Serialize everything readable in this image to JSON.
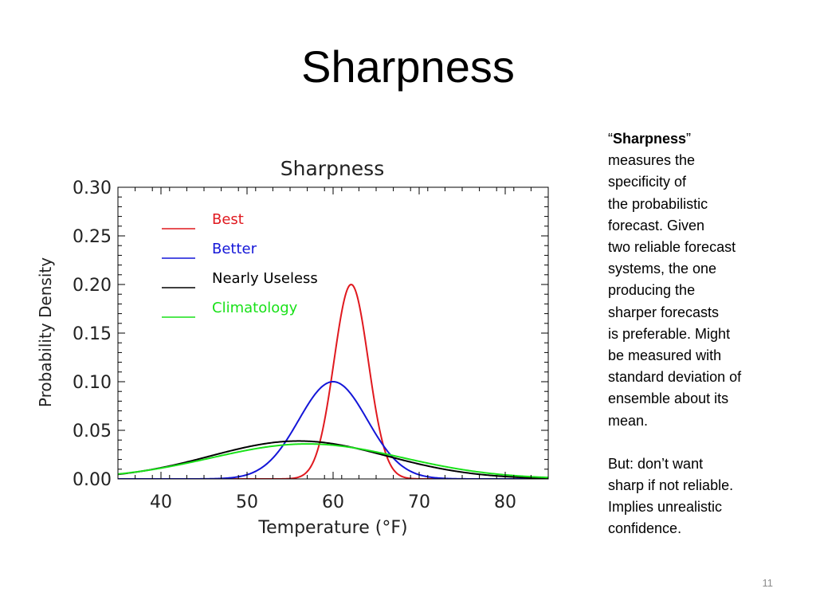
{
  "slide": {
    "title": "Sharpness",
    "number": "11"
  },
  "sidebar": {
    "para1_quote_open": "“",
    "para1_bold": "Sharpness",
    "para1_quote_close": "”",
    "para1_lines": [
      "measures the",
      "specificity of",
      "the probabilistic",
      "forecast.  Given",
      "two reliable forecast",
      "systems, the one",
      "producing the",
      "sharper forecasts",
      "is preferable.  Might",
      "be measured with",
      "standard deviation of",
      "ensemble about its",
      "mean."
    ],
    "para2_lines": [
      "But: don’t want",
      "sharp if not reliable.",
      "Implies unrealistic",
      "confidence."
    ]
  },
  "chart_data": {
    "type": "line",
    "title": "Sharpness",
    "xlabel": "Temperature (°F)",
    "ylabel": "Probability Density",
    "xlim": [
      35,
      85
    ],
    "ylim": [
      0,
      0.3
    ],
    "x_ticks": [
      "40",
      "50",
      "60",
      "70",
      "80"
    ],
    "y_ticks": [
      "0.00",
      "0.05",
      "0.10",
      "0.15",
      "0.20",
      "0.25",
      "0.30"
    ],
    "legend_position": "top-left",
    "series": [
      {
        "name": "Best",
        "color": "#e0191f",
        "mean": 62.1,
        "peak": 0.2
      },
      {
        "name": "Better",
        "color": "#1416d8",
        "mean": 60.0,
        "peak": 0.1
      },
      {
        "name": "Nearly Useless",
        "color": "#000000",
        "mean": 56.0,
        "peak": 0.039
      },
      {
        "name": "Climatology",
        "color": "#19e119",
        "mean": 57.0,
        "peak": 0.036
      }
    ]
  }
}
